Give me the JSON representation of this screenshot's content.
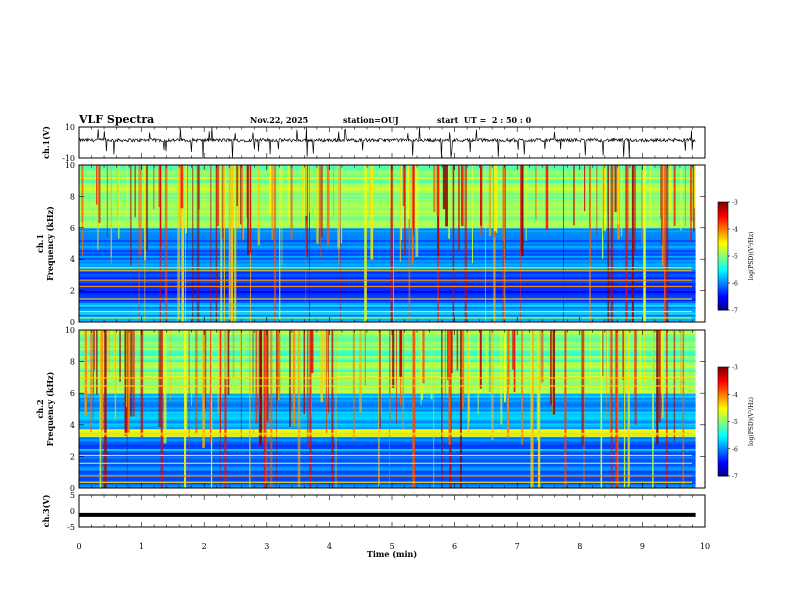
{
  "header": {
    "title": "VLF Spectra",
    "date": "Nov.22, 2025",
    "station": "station=OUJ",
    "start_ut": "start  UT =  2 : 50 : 0"
  },
  "colors": {
    "waveform": "#000000",
    "frame": "#000000",
    "colormap": [
      "#00007f",
      "#0000ff",
      "#007fff",
      "#00ffff",
      "#7fff7f",
      "#ffff00",
      "#ff7f00",
      "#ff0000",
      "#7f0000"
    ]
  },
  "chart_data": [
    {
      "type": "line",
      "title": "VLF Spectra",
      "ylabel": "ch.1(V)",
      "xlim": [
        0,
        10
      ],
      "ylim": [
        -10,
        10
      ],
      "yticks": [
        "10",
        "-10"
      ],
      "description_value": "baseline near 0 V with spikes reaching about -10 V"
    },
    {
      "type": "heatmap",
      "ylabel": "ch.1\nFrequency (kHz)",
      "ylabel_line1": "ch.1",
      "ylabel_line2": "Frequency (kHz)",
      "xlim": [
        0,
        10
      ],
      "ylim": [
        0,
        10
      ],
      "yticks": [
        "0",
        "2",
        "4",
        "6",
        "8",
        "10"
      ],
      "colorbar": {
        "label": "log(PSD)(V²/Hz)",
        "range": [
          -7,
          -3
        ],
        "ticks": [
          "-3",
          "-4",
          "-5",
          "-6",
          "-7"
        ]
      }
    },
    {
      "type": "heatmap",
      "ylabel": "ch.2\nFrequency (kHz)",
      "ylabel_line1": "ch.2",
      "ylabel_line2": "Frequency (kHz)",
      "xlim": [
        0,
        10
      ],
      "ylim": [
        0,
        10
      ],
      "yticks": [
        "0",
        "2",
        "4",
        "6",
        "8",
        "10"
      ],
      "colorbar": {
        "label": "log(PSD)(V²/Hz)",
        "range": [
          -7,
          -3
        ],
        "ticks": [
          "-3",
          "-4",
          "-5",
          "-6",
          "-7"
        ]
      }
    },
    {
      "type": "line",
      "ylabel": "ch.3(V)",
      "xlim": [
        0,
        10
      ],
      "ylim": [
        -5,
        5
      ],
      "yticks": [
        "5",
        "0",
        "-5"
      ],
      "value": -1.2
    }
  ],
  "xaxis": {
    "label": "Time (min)",
    "ticks": [
      "0",
      "1",
      "2",
      "3",
      "4",
      "5",
      "6",
      "7",
      "8",
      "9",
      "10"
    ],
    "min": 0,
    "max": 10
  }
}
